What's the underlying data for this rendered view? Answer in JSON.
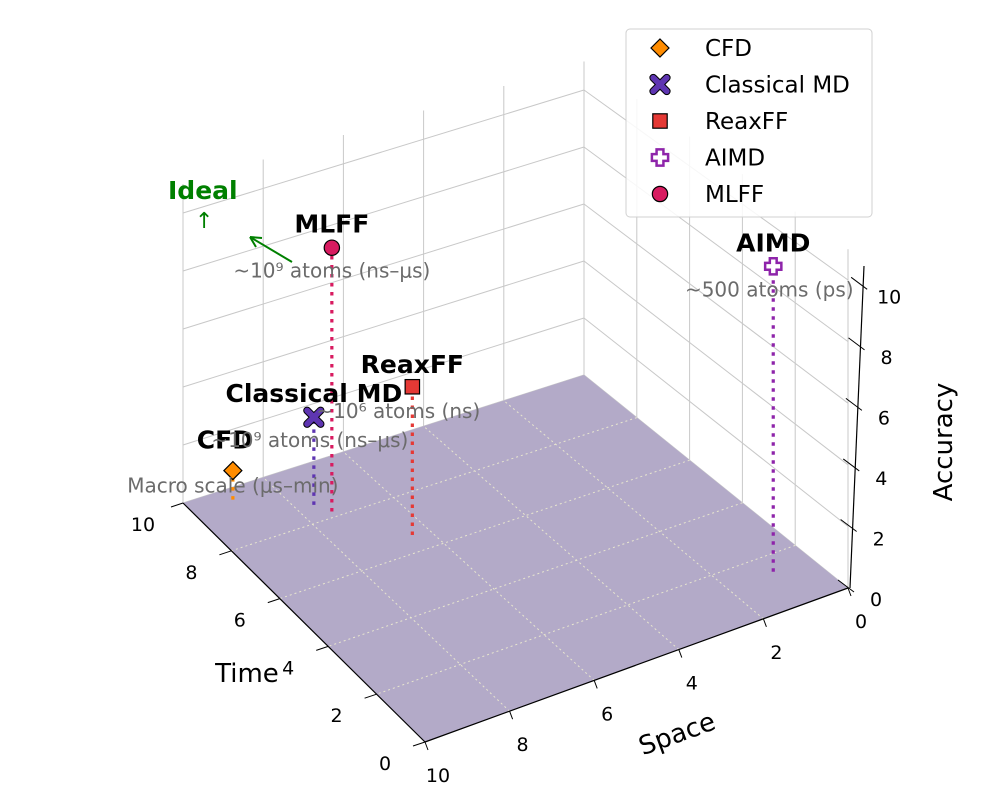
{
  "chart_data": {
    "type": "scatter",
    "projection": "3d",
    "title": "",
    "xlabel": "Space",
    "ylabel": "Time",
    "zlabel": "Accuracy",
    "xlim": [
      0,
      10
    ],
    "ylim": [
      0,
      10
    ],
    "zlim": [
      0,
      10
    ],
    "xticks": [
      "0",
      "2",
      "4",
      "6",
      "8",
      "10"
    ],
    "yticks": [
      "0",
      "2",
      "4",
      "6",
      "8",
      "10"
    ],
    "zticks": [
      "0",
      "2",
      "4",
      "6",
      "8",
      "10"
    ],
    "grid": true,
    "floor_color": "#b3aac8",
    "legend_position": "top-right",
    "series": [
      {
        "name": "CFD",
        "marker": "diamond",
        "color": "#ff8c00",
        "space": 9,
        "time": 9.6,
        "accuracy": 1,
        "label": "CFD",
        "note": "Macro scale (μs–min)"
      },
      {
        "name": "Classical MD",
        "marker": "x",
        "color": "#5e35b1",
        "space": 7.6,
        "time": 8.6,
        "accuracy": 3,
        "label": "Classical MD",
        "note": "~10⁹ atoms (ns–μs)"
      },
      {
        "name": "ReaxFF",
        "marker": "square",
        "color": "#e53935",
        "space": 6.4,
        "time": 6.6,
        "accuracy": 5,
        "label": "ReaxFF",
        "note": "~10⁶ atoms (ns)"
      },
      {
        "name": "AIMD",
        "marker": "plus",
        "color": "#8e24aa",
        "space": 0.9,
        "time": 1.4,
        "accuracy": 10,
        "label": "AIMD",
        "note": "~500 atoms (ps)"
      },
      {
        "name": "MLFF",
        "marker": "circle",
        "color": "#d81b60",
        "space": 7.4,
        "time": 8.2,
        "accuracy": 9,
        "label": "MLFF",
        "note": "~10⁹ atoms (ns–μs)"
      }
    ],
    "annotations": [
      {
        "text": "Ideal",
        "color": "#008000"
      },
      {
        "text": "↑",
        "color": "#008000"
      }
    ]
  }
}
